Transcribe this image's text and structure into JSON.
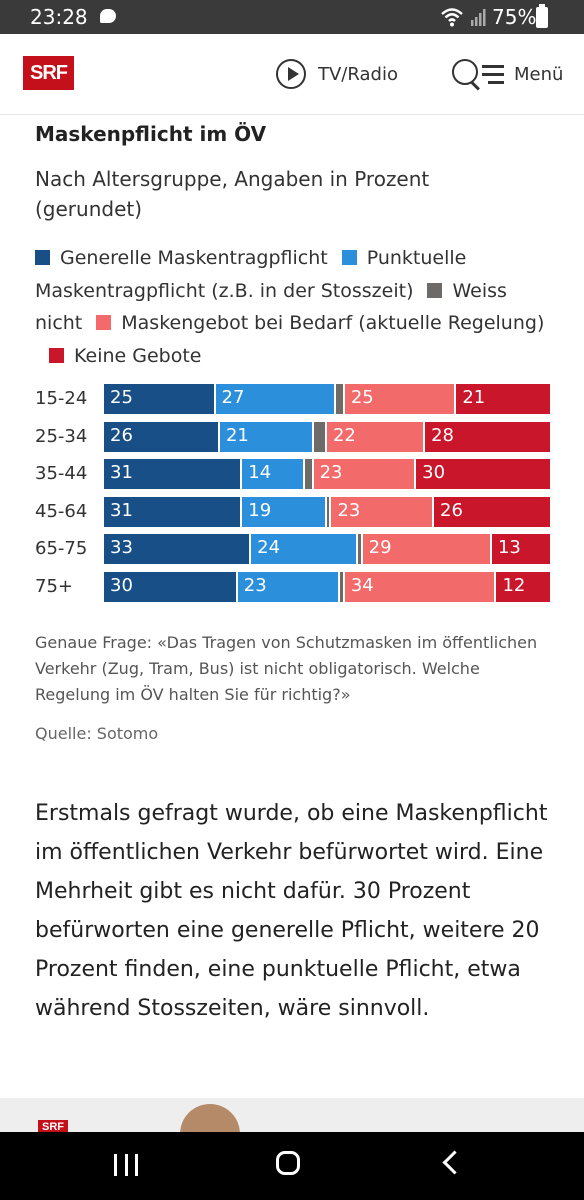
{
  "status_bar": {
    "time": "23:28",
    "battery": "75%"
  },
  "header": {
    "logo": "SRF",
    "tv_radio_label": "TV/Radio",
    "menu_label": "Menü"
  },
  "chart_data": {
    "type": "bar",
    "orientation": "horizontal",
    "stacked": true,
    "title": "Maskenpflicht im ÖV",
    "subtitle": "Nach Altersgruppe, Angaben in Prozent (gerundet)",
    "legend_placement": "top",
    "categories": [
      "15-24",
      "25-34",
      "35-44",
      "45-64",
      "65-75",
      "75+"
    ],
    "series": [
      {
        "name": "Generelle Maskentragpflicht",
        "color": "#174f86",
        "values": [
          25,
          26,
          31,
          31,
          33,
          30
        ]
      },
      {
        "name": "Punktuelle Maskentragpflicht (z.B. in der Stosszeit)",
        "color": "#2c8fdb",
        "values": [
          27,
          21,
          14,
          19,
          24,
          23
        ]
      },
      {
        "name": "Weiss nicht",
        "color": "#6e6a68",
        "values": [
          2,
          3,
          2,
          1,
          1,
          1
        ]
      },
      {
        "name": "Maskengebot bei Bedarf (aktuelle Regelung)",
        "color": "#f26a6a",
        "values": [
          25,
          22,
          23,
          23,
          29,
          34
        ]
      },
      {
        "name": "Keine Gebote",
        "color": "#c9162b",
        "values": [
          21,
          28,
          30,
          26,
          13,
          12
        ]
      }
    ],
    "data_labels": [
      [
        "25",
        "27",
        "",
        "25",
        "21"
      ],
      [
        "26",
        "21",
        "",
        "22",
        "28"
      ],
      [
        "31",
        "14",
        "",
        "23",
        "30"
      ],
      [
        "31",
        "19",
        "",
        "23",
        "26"
      ],
      [
        "33",
        "24",
        "",
        "29",
        "13"
      ],
      [
        "30",
        "23",
        "",
        "34",
        "12"
      ]
    ],
    "xlim": [
      0,
      100
    ],
    "grid": false
  },
  "chart_note": "Genaue Frage: «Das Tragen von Schutzmasken im öffentlichen Verkehr (Zug, Tram, Bus) ist nicht obligatorisch. Welche Regelung im ÖV halten Sie für richtig?»",
  "chart_source": "Quelle: Sotomo",
  "article_text": "Erstmals gefragt wurde, ob eine Maskenpflicht im öffentlichen Verkehr befürwortet wird. Eine Mehrheit gibt es nicht dafür. 30 Prozent befürworten eine generelle Pflicht, weitere 20 Prozent finden, eine punktuelle Pflicht, etwa während Stosszeiten, wäre sinnvoll.",
  "thumbnail": {
    "logo": "SRF"
  }
}
